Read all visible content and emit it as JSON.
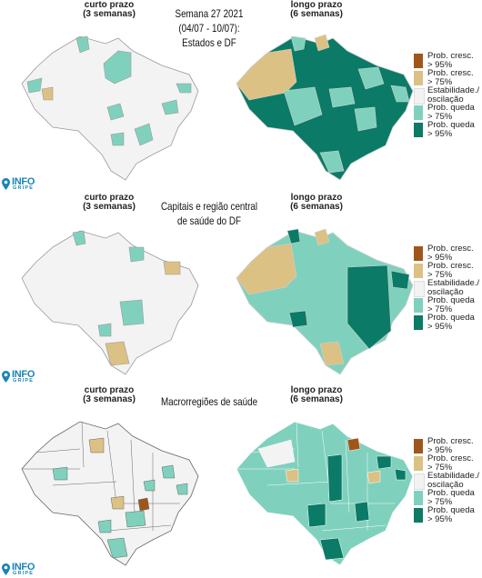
{
  "sections": [
    {
      "left_header": [
        "curto prazo",
        "(3 semanas)"
      ],
      "title": [
        "Semana 27 2021",
        "(04/07 - 10/07):",
        "Estados e DF"
      ],
      "right_header": [
        "longo prazo",
        "(6 semanas)"
      ]
    },
    {
      "left_header": [
        "curto prazo",
        "(3 semanas)"
      ],
      "title": [
        "Capitais e região central",
        "de saúde do DF"
      ],
      "right_header": [
        "longo prazo",
        "(6 semanas)"
      ]
    },
    {
      "left_header": [
        "curto prazo",
        "(3 semanas)"
      ],
      "title": [
        "Macrorregiões de saúde"
      ],
      "right_header": [
        "longo prazo",
        "(6 semanas)"
      ]
    }
  ],
  "legend": [
    {
      "label": [
        "Prob. cresc.",
        "> 95%"
      ],
      "color": "#a0561a"
    },
    {
      "label": [
        "Prob. cresc.",
        "> 75%"
      ],
      "color": "#dcc184"
    },
    {
      "label": [
        "Estabilidade./",
        "oscilação"
      ],
      "color": "#f3f3f3"
    },
    {
      "label": [
        "Prob. queda",
        "> 75%"
      ],
      "color": "#7fd1bd"
    },
    {
      "label": [
        "Prob. queda",
        "> 95%"
      ],
      "color": "#0b7a66"
    }
  ],
  "logo": {
    "text": "INFO",
    "subtext": "GRIPE"
  }
}
